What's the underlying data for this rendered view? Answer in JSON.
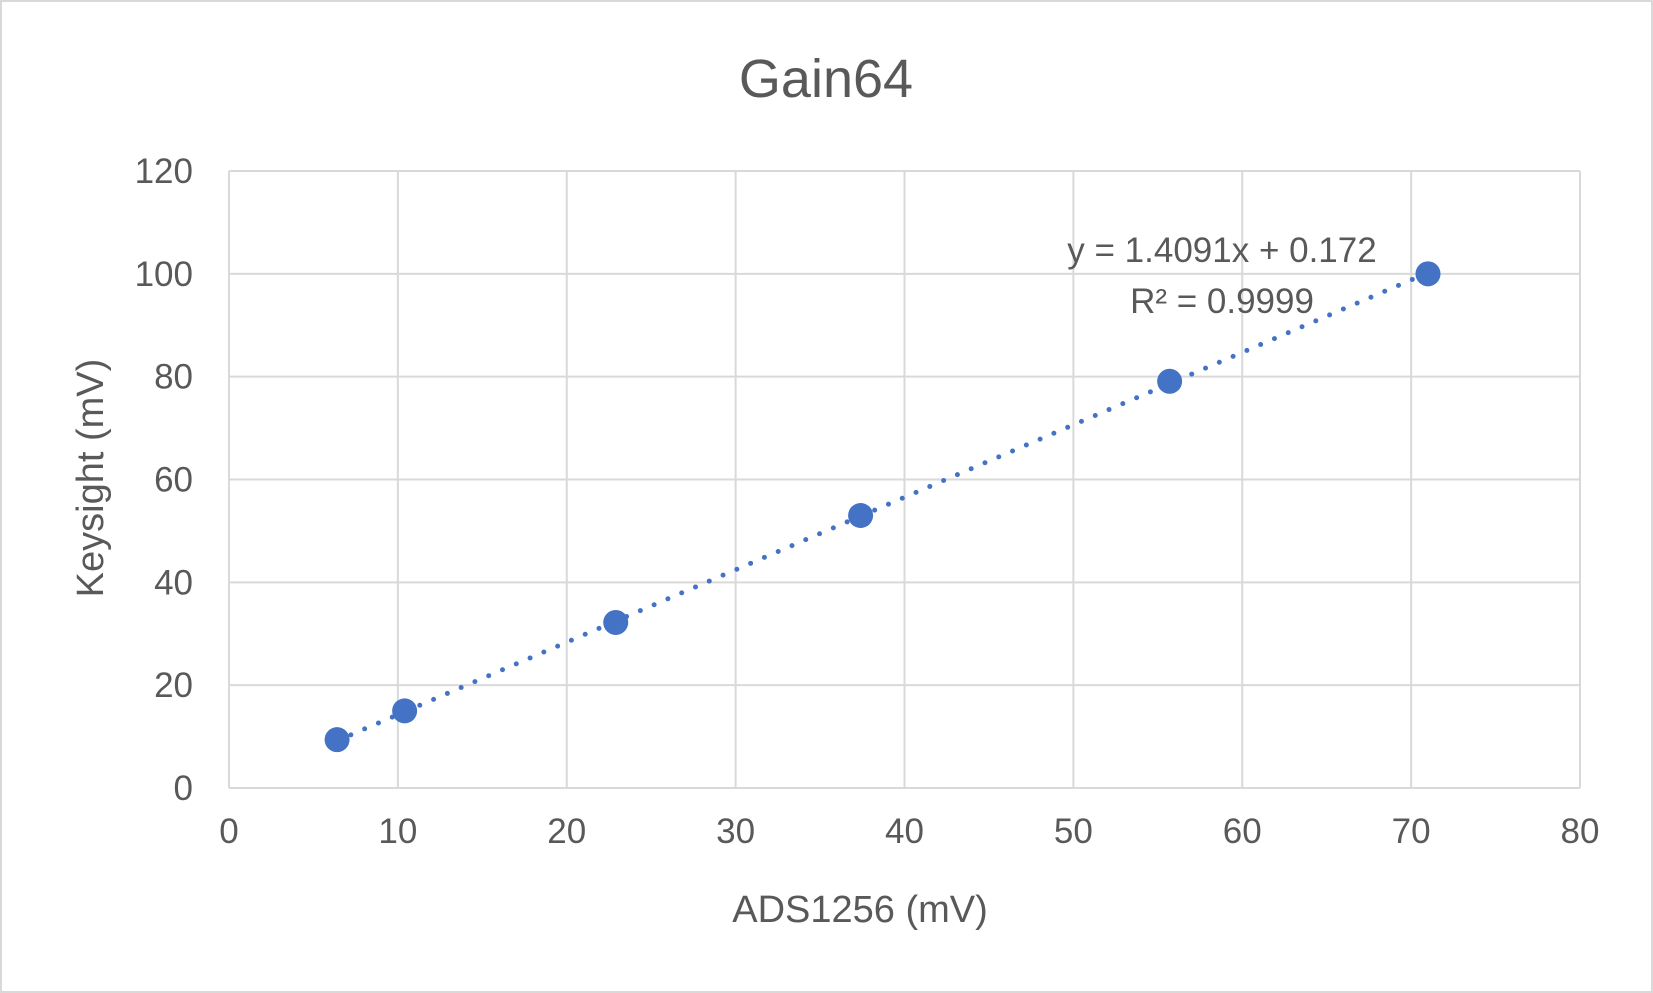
{
  "chart_data": {
    "type": "scatter",
    "title": "Gain64",
    "xlabel": "ADS1256 (mV)",
    "ylabel": "Keysight (mV)",
    "xlim": [
      0,
      80
    ],
    "ylim": [
      0,
      120
    ],
    "x_ticks": [
      "0",
      "10",
      "20",
      "30",
      "40",
      "50",
      "60",
      "70",
      "80"
    ],
    "y_ticks": [
      "0",
      "20",
      "40",
      "60",
      "80",
      "100",
      "120"
    ],
    "grid": true,
    "legend": "none",
    "points": [
      {
        "x": 6.4,
        "y": 9.4
      },
      {
        "x": 10.4,
        "y": 15.0
      },
      {
        "x": 22.9,
        "y": 32.2
      },
      {
        "x": 37.4,
        "y": 53.0
      },
      {
        "x": 55.7,
        "y": 79.1
      },
      {
        "x": 71.0,
        "y": 100.0
      }
    ],
    "trendline": {
      "type": "linear",
      "slope": 1.4091,
      "intercept": 0.172,
      "x_start": 6.4,
      "x_end": 71.0,
      "style": "dotted",
      "equation_label": "y = 1.4091x + 0.172",
      "r2_label": "R² = 0.9999"
    },
    "colors": {
      "points": "#4472c4",
      "trendline": "#4472c4",
      "grid": "#d9d9d9",
      "text": "#595959"
    }
  }
}
